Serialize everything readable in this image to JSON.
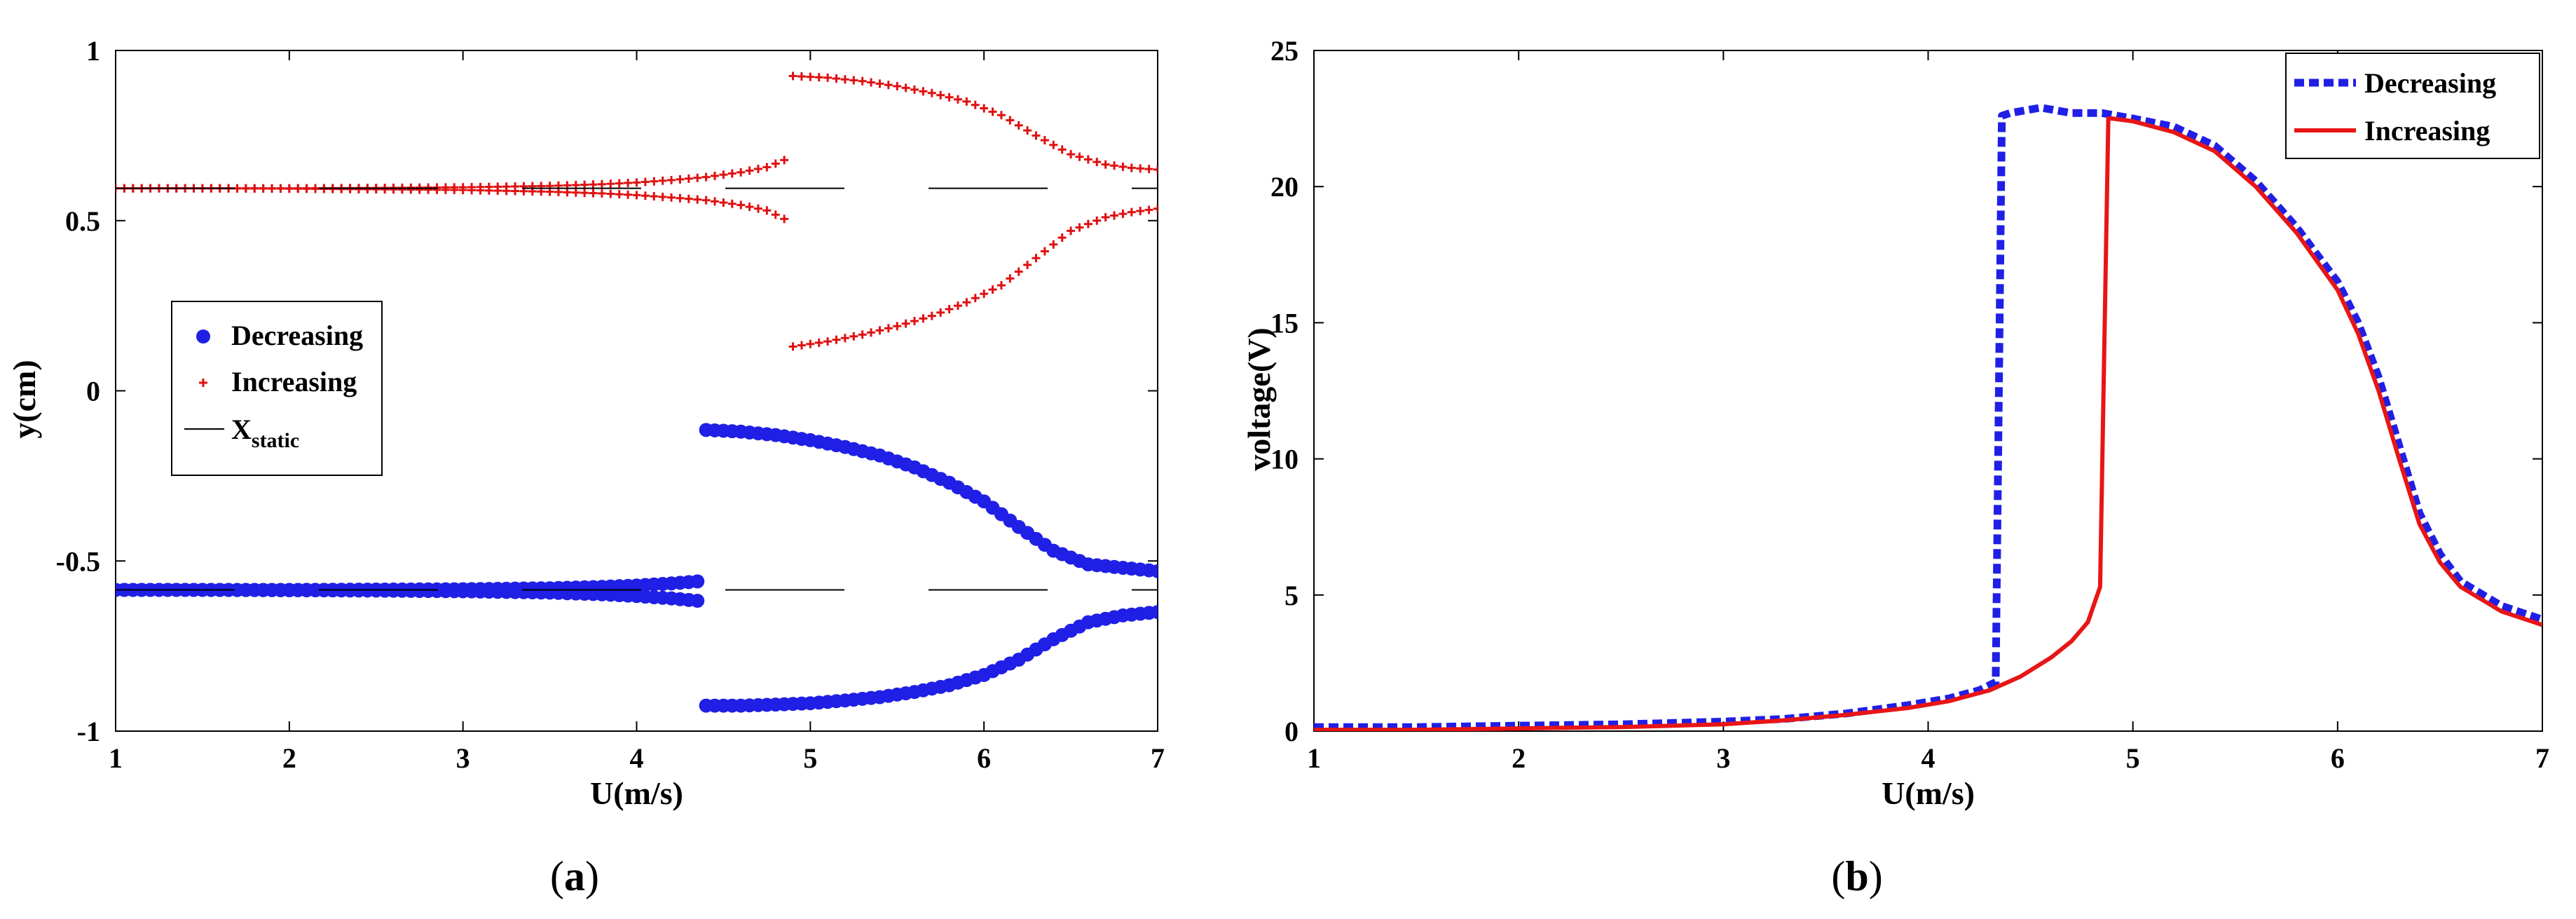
{
  "chart_data": [
    {
      "type": "scatter",
      "panel_label": "a",
      "xlabel": "U(m/s)",
      "ylabel": "y(cm)",
      "xlim": [
        1,
        7
      ],
      "ylim": [
        -1,
        1
      ],
      "x_ticks": [
        "1",
        "2",
        "3",
        "4",
        "5",
        "6",
        "7"
      ],
      "y_ticks": [
        "-1",
        "-0.5",
        "0",
        "0.5",
        "1"
      ],
      "grid": false,
      "legend_position": "middle-left",
      "series": [
        {
          "name": "Decreasing",
          "color": "#1f1fe6",
          "marker": "circle",
          "branches": [
            {
              "x": [
                1.0,
                1.5,
                2.0,
                2.5,
                3.0,
                3.5,
                3.8,
                4.0,
                4.2,
                4.35
              ],
              "y": [
                -0.585,
                -0.585,
                -0.585,
                -0.584,
                -0.583,
                -0.58,
                -0.576,
                -0.572,
                -0.566,
                -0.56
              ]
            },
            {
              "x": [
                1.0,
                1.5,
                2.0,
                2.5,
                3.0,
                3.5,
                3.8,
                4.0,
                4.2,
                4.35
              ],
              "y": [
                -0.585,
                -0.585,
                -0.586,
                -0.587,
                -0.589,
                -0.593,
                -0.598,
                -0.603,
                -0.61,
                -0.617
              ]
            },
            {
              "x": [
                4.4,
                4.6,
                4.8,
                5.0,
                5.2,
                5.4,
                5.6,
                5.8,
                6.0,
                6.2,
                6.4,
                6.6,
                6.8,
                7.0
              ],
              "y": [
                -0.115,
                -0.12,
                -0.13,
                -0.145,
                -0.165,
                -0.19,
                -0.225,
                -0.27,
                -0.325,
                -0.4,
                -0.47,
                -0.51,
                -0.52,
                -0.53
              ]
            },
            {
              "x": [
                4.4,
                4.6,
                4.8,
                5.0,
                5.2,
                5.4,
                5.6,
                5.8,
                6.0,
                6.2,
                6.4,
                6.6,
                6.8,
                7.0
              ],
              "y": [
                -0.925,
                -0.925,
                -0.922,
                -0.918,
                -0.91,
                -0.9,
                -0.885,
                -0.865,
                -0.835,
                -0.79,
                -0.73,
                -0.68,
                -0.66,
                -0.65
              ]
            }
          ]
        },
        {
          "name": "Increasing",
          "color": "#e01010",
          "marker": "plus",
          "branches": [
            {
              "x": [
                1.0,
                1.5,
                2.0,
                2.5,
                3.0,
                3.5,
                3.8,
                4.0,
                4.2,
                4.4,
                4.6,
                4.75,
                4.85
              ],
              "y": [
                0.595,
                0.595,
                0.595,
                0.596,
                0.598,
                0.602,
                0.607,
                0.612,
                0.619,
                0.628,
                0.642,
                0.657,
                0.678
              ]
            },
            {
              "x": [
                1.0,
                1.5,
                2.0,
                2.5,
                3.0,
                3.5,
                3.8,
                4.0,
                4.2,
                4.4,
                4.6,
                4.75,
                4.85
              ],
              "y": [
                0.595,
                0.595,
                0.594,
                0.592,
                0.59,
                0.585,
                0.58,
                0.575,
                0.568,
                0.56,
                0.546,
                0.53,
                0.505
              ]
            },
            {
              "x": [
                4.9,
                5.1,
                5.3,
                5.5,
                5.7,
                5.9,
                6.1,
                6.3,
                6.5,
                6.7,
                6.85,
                7.0
              ],
              "y": [
                0.925,
                0.92,
                0.91,
                0.895,
                0.875,
                0.85,
                0.81,
                0.75,
                0.695,
                0.665,
                0.655,
                0.65
              ]
            },
            {
              "x": [
                4.9,
                5.1,
                5.3,
                5.5,
                5.7,
                5.9,
                6.1,
                6.3,
                6.5,
                6.7,
                6.85,
                7.0
              ],
              "y": [
                0.13,
                0.145,
                0.165,
                0.19,
                0.22,
                0.26,
                0.31,
                0.39,
                0.47,
                0.51,
                0.525,
                0.535
              ]
            }
          ]
        },
        {
          "name": "X_static",
          "color": "#000000",
          "marker": "line",
          "branches": [
            {
              "x": [
                1.0,
                7.0
              ],
              "y": [
                0.595,
                0.595
              ]
            },
            {
              "x": [
                1.0,
                7.0
              ],
              "y": [
                -0.585,
                -0.585
              ]
            }
          ]
        }
      ],
      "legend": [
        {
          "label": "Decreasing"
        },
        {
          "label": "Increasing"
        },
        {
          "label": "X",
          "sub": "static"
        }
      ]
    },
    {
      "type": "line",
      "panel_label": "b",
      "xlabel": "U(m/s)",
      "ylabel": "voltage(V)",
      "xlim": [
        1,
        7
      ],
      "ylim": [
        0,
        25
      ],
      "x_ticks": [
        "1",
        "2",
        "3",
        "4",
        "5",
        "6",
        "7"
      ],
      "y_ticks": [
        "0",
        "5",
        "10",
        "15",
        "20",
        "25"
      ],
      "grid": false,
      "legend_position": "top-right",
      "series": [
        {
          "name": "Decreasing",
          "color": "#1f1fe6",
          "style": "dotted",
          "x": [
            1.0,
            1.5,
            2.0,
            2.5,
            3.0,
            3.3,
            3.6,
            3.9,
            4.1,
            4.25,
            4.33,
            4.36,
            4.4,
            4.55,
            4.7,
            4.85,
            5.0,
            5.2,
            5.4,
            5.6,
            5.8,
            6.0,
            6.1,
            6.2,
            6.3,
            6.4,
            6.5,
            6.6,
            6.8,
            7.0
          ],
          "y": [
            0.15,
            0.15,
            0.2,
            0.25,
            0.35,
            0.45,
            0.65,
            0.95,
            1.2,
            1.5,
            1.8,
            22.6,
            22.7,
            22.9,
            22.7,
            22.7,
            22.5,
            22.2,
            21.5,
            20.2,
            18.5,
            16.5,
            15.0,
            13.0,
            10.5,
            8.0,
            6.5,
            5.5,
            4.6,
            4.1
          ]
        },
        {
          "name": "Increasing",
          "color": "#e81515",
          "style": "solid",
          "x": [
            1.0,
            1.5,
            2.0,
            2.5,
            3.0,
            3.3,
            3.6,
            3.9,
            4.1,
            4.3,
            4.45,
            4.6,
            4.7,
            4.78,
            4.84,
            4.88,
            4.9,
            5.0,
            5.2,
            5.4,
            5.6,
            5.8,
            6.0,
            6.1,
            6.2,
            6.3,
            6.4,
            6.5,
            6.6,
            6.8,
            7.0
          ],
          "y": [
            0.05,
            0.05,
            0.1,
            0.15,
            0.25,
            0.4,
            0.6,
            0.85,
            1.1,
            1.5,
            2.0,
            2.7,
            3.3,
            4.0,
            5.3,
            22.5,
            22.5,
            22.4,
            22.0,
            21.3,
            20.0,
            18.3,
            16.2,
            14.6,
            12.5,
            10.0,
            7.6,
            6.2,
            5.3,
            4.4,
            3.9
          ]
        }
      ],
      "legend": [
        {
          "label": "Decreasing"
        },
        {
          "label": "Increasing"
        }
      ]
    }
  ]
}
